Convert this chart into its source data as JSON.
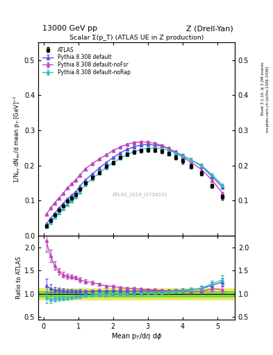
{
  "title_left": "13000 GeV pp",
  "title_right": "Z (Drell-Yan)",
  "plot_title": "Scalar Σ(p_T) (ATLAS UE in Z production)",
  "ylabel_main": "1/N$_{ev}$ dN$_{ev}$/d mean p$_{T}$ [GeV]$^{-1}$",
  "ylabel_ratio": "Ratio to ATLAS",
  "xlabel": "Mean p$_{T}$/d$\\eta$ d$\\phi$",
  "watermark": "ATLAS_2019_I1736531",
  "right_label_top": "Rivet 3.1.10, ≥ 3.2M events",
  "right_label_bot": "mcplots.cern.ch [arXiv:1306.3436]",
  "ylim_main": [
    0.0,
    0.55
  ],
  "ylim_ratio": [
    0.45,
    2.25
  ],
  "yticks_main": [
    0.0,
    0.1,
    0.2,
    0.3,
    0.4,
    0.5
  ],
  "yticks_ratio": [
    0.5,
    1.0,
    1.5,
    2.0
  ],
  "xlim": [
    -0.15,
    5.5
  ],
  "xticks": [
    0,
    1,
    2,
    3,
    4,
    5
  ],
  "atlas_x": [
    0.08,
    0.2,
    0.32,
    0.44,
    0.56,
    0.68,
    0.8,
    0.92,
    1.04,
    1.2,
    1.4,
    1.6,
    1.8,
    2.0,
    2.2,
    2.4,
    2.6,
    2.8,
    3.0,
    3.2,
    3.4,
    3.6,
    3.8,
    4.0,
    4.25,
    4.55,
    4.85,
    5.15
  ],
  "atlas_y": [
    0.028,
    0.043,
    0.058,
    0.072,
    0.085,
    0.098,
    0.107,
    0.117,
    0.132,
    0.15,
    0.165,
    0.18,
    0.197,
    0.208,
    0.222,
    0.232,
    0.238,
    0.242,
    0.244,
    0.243,
    0.24,
    0.233,
    0.222,
    0.212,
    0.197,
    0.178,
    0.142,
    0.11
  ],
  "atlas_yerr": [
    0.003,
    0.003,
    0.003,
    0.003,
    0.003,
    0.003,
    0.003,
    0.003,
    0.004,
    0.004,
    0.004,
    0.004,
    0.004,
    0.004,
    0.004,
    0.005,
    0.005,
    0.005,
    0.005,
    0.005,
    0.005,
    0.005,
    0.006,
    0.006,
    0.006,
    0.006,
    0.006,
    0.007
  ],
  "py_default_x": [
    0.08,
    0.2,
    0.32,
    0.44,
    0.56,
    0.68,
    0.8,
    0.92,
    1.04,
    1.2,
    1.4,
    1.6,
    1.8,
    2.0,
    2.2,
    2.4,
    2.6,
    2.8,
    3.0,
    3.2,
    3.4,
    3.6,
    3.8,
    4.0,
    4.25,
    4.55,
    4.85,
    5.15
  ],
  "py_default_y": [
    0.033,
    0.048,
    0.063,
    0.078,
    0.091,
    0.104,
    0.114,
    0.124,
    0.14,
    0.158,
    0.175,
    0.192,
    0.208,
    0.222,
    0.235,
    0.246,
    0.253,
    0.258,
    0.26,
    0.258,
    0.255,
    0.248,
    0.238,
    0.228,
    0.215,
    0.198,
    0.168,
    0.138
  ],
  "py_default_yerr": [
    0.002,
    0.002,
    0.002,
    0.002,
    0.002,
    0.002,
    0.002,
    0.002,
    0.003,
    0.003,
    0.003,
    0.003,
    0.003,
    0.003,
    0.003,
    0.003,
    0.004,
    0.004,
    0.004,
    0.004,
    0.004,
    0.004,
    0.004,
    0.004,
    0.005,
    0.005,
    0.005,
    0.005
  ],
  "py_nofsr_x": [
    0.08,
    0.2,
    0.32,
    0.44,
    0.56,
    0.68,
    0.8,
    0.92,
    1.04,
    1.2,
    1.4,
    1.6,
    1.8,
    2.0,
    2.2,
    2.4,
    2.6,
    2.8,
    3.0,
    3.2,
    3.4,
    3.6,
    3.8,
    4.0,
    4.25,
    4.55,
    4.85,
    5.15
  ],
  "py_nofsr_y": [
    0.06,
    0.078,
    0.093,
    0.107,
    0.12,
    0.135,
    0.147,
    0.158,
    0.172,
    0.19,
    0.205,
    0.218,
    0.23,
    0.242,
    0.252,
    0.26,
    0.265,
    0.267,
    0.266,
    0.263,
    0.257,
    0.248,
    0.236,
    0.224,
    0.208,
    0.188,
    0.158,
    0.12
  ],
  "py_nofsr_yerr": [
    0.002,
    0.002,
    0.002,
    0.002,
    0.002,
    0.002,
    0.002,
    0.002,
    0.003,
    0.003,
    0.003,
    0.003,
    0.003,
    0.003,
    0.003,
    0.003,
    0.004,
    0.004,
    0.004,
    0.004,
    0.004,
    0.004,
    0.004,
    0.004,
    0.005,
    0.005,
    0.005,
    0.005
  ],
  "py_norap_x": [
    0.08,
    0.2,
    0.32,
    0.44,
    0.56,
    0.68,
    0.8,
    0.92,
    1.04,
    1.2,
    1.4,
    1.6,
    1.8,
    2.0,
    2.2,
    2.4,
    2.6,
    2.8,
    3.0,
    3.2,
    3.4,
    3.6,
    3.8,
    4.0,
    4.25,
    4.55,
    4.85,
    5.15
  ],
  "py_norap_y": [
    0.026,
    0.038,
    0.052,
    0.065,
    0.077,
    0.089,
    0.099,
    0.11,
    0.125,
    0.145,
    0.162,
    0.178,
    0.194,
    0.208,
    0.22,
    0.231,
    0.239,
    0.245,
    0.249,
    0.25,
    0.248,
    0.243,
    0.235,
    0.226,
    0.215,
    0.2,
    0.173,
    0.143
  ],
  "py_norap_yerr": [
    0.002,
    0.002,
    0.002,
    0.002,
    0.002,
    0.002,
    0.002,
    0.002,
    0.003,
    0.003,
    0.003,
    0.003,
    0.003,
    0.003,
    0.003,
    0.003,
    0.004,
    0.004,
    0.004,
    0.004,
    0.004,
    0.004,
    0.004,
    0.004,
    0.005,
    0.005,
    0.005,
    0.005
  ],
  "color_atlas": "#000000",
  "color_default": "#5555dd",
  "color_nofsr": "#bb44bb",
  "color_norap": "#33bbbb",
  "band_green": "#00bb00",
  "band_yellow": "#dddd00",
  "band_green_alpha": 0.4,
  "band_yellow_alpha": 0.55,
  "band_inner": 0.06,
  "band_outer": 0.12
}
